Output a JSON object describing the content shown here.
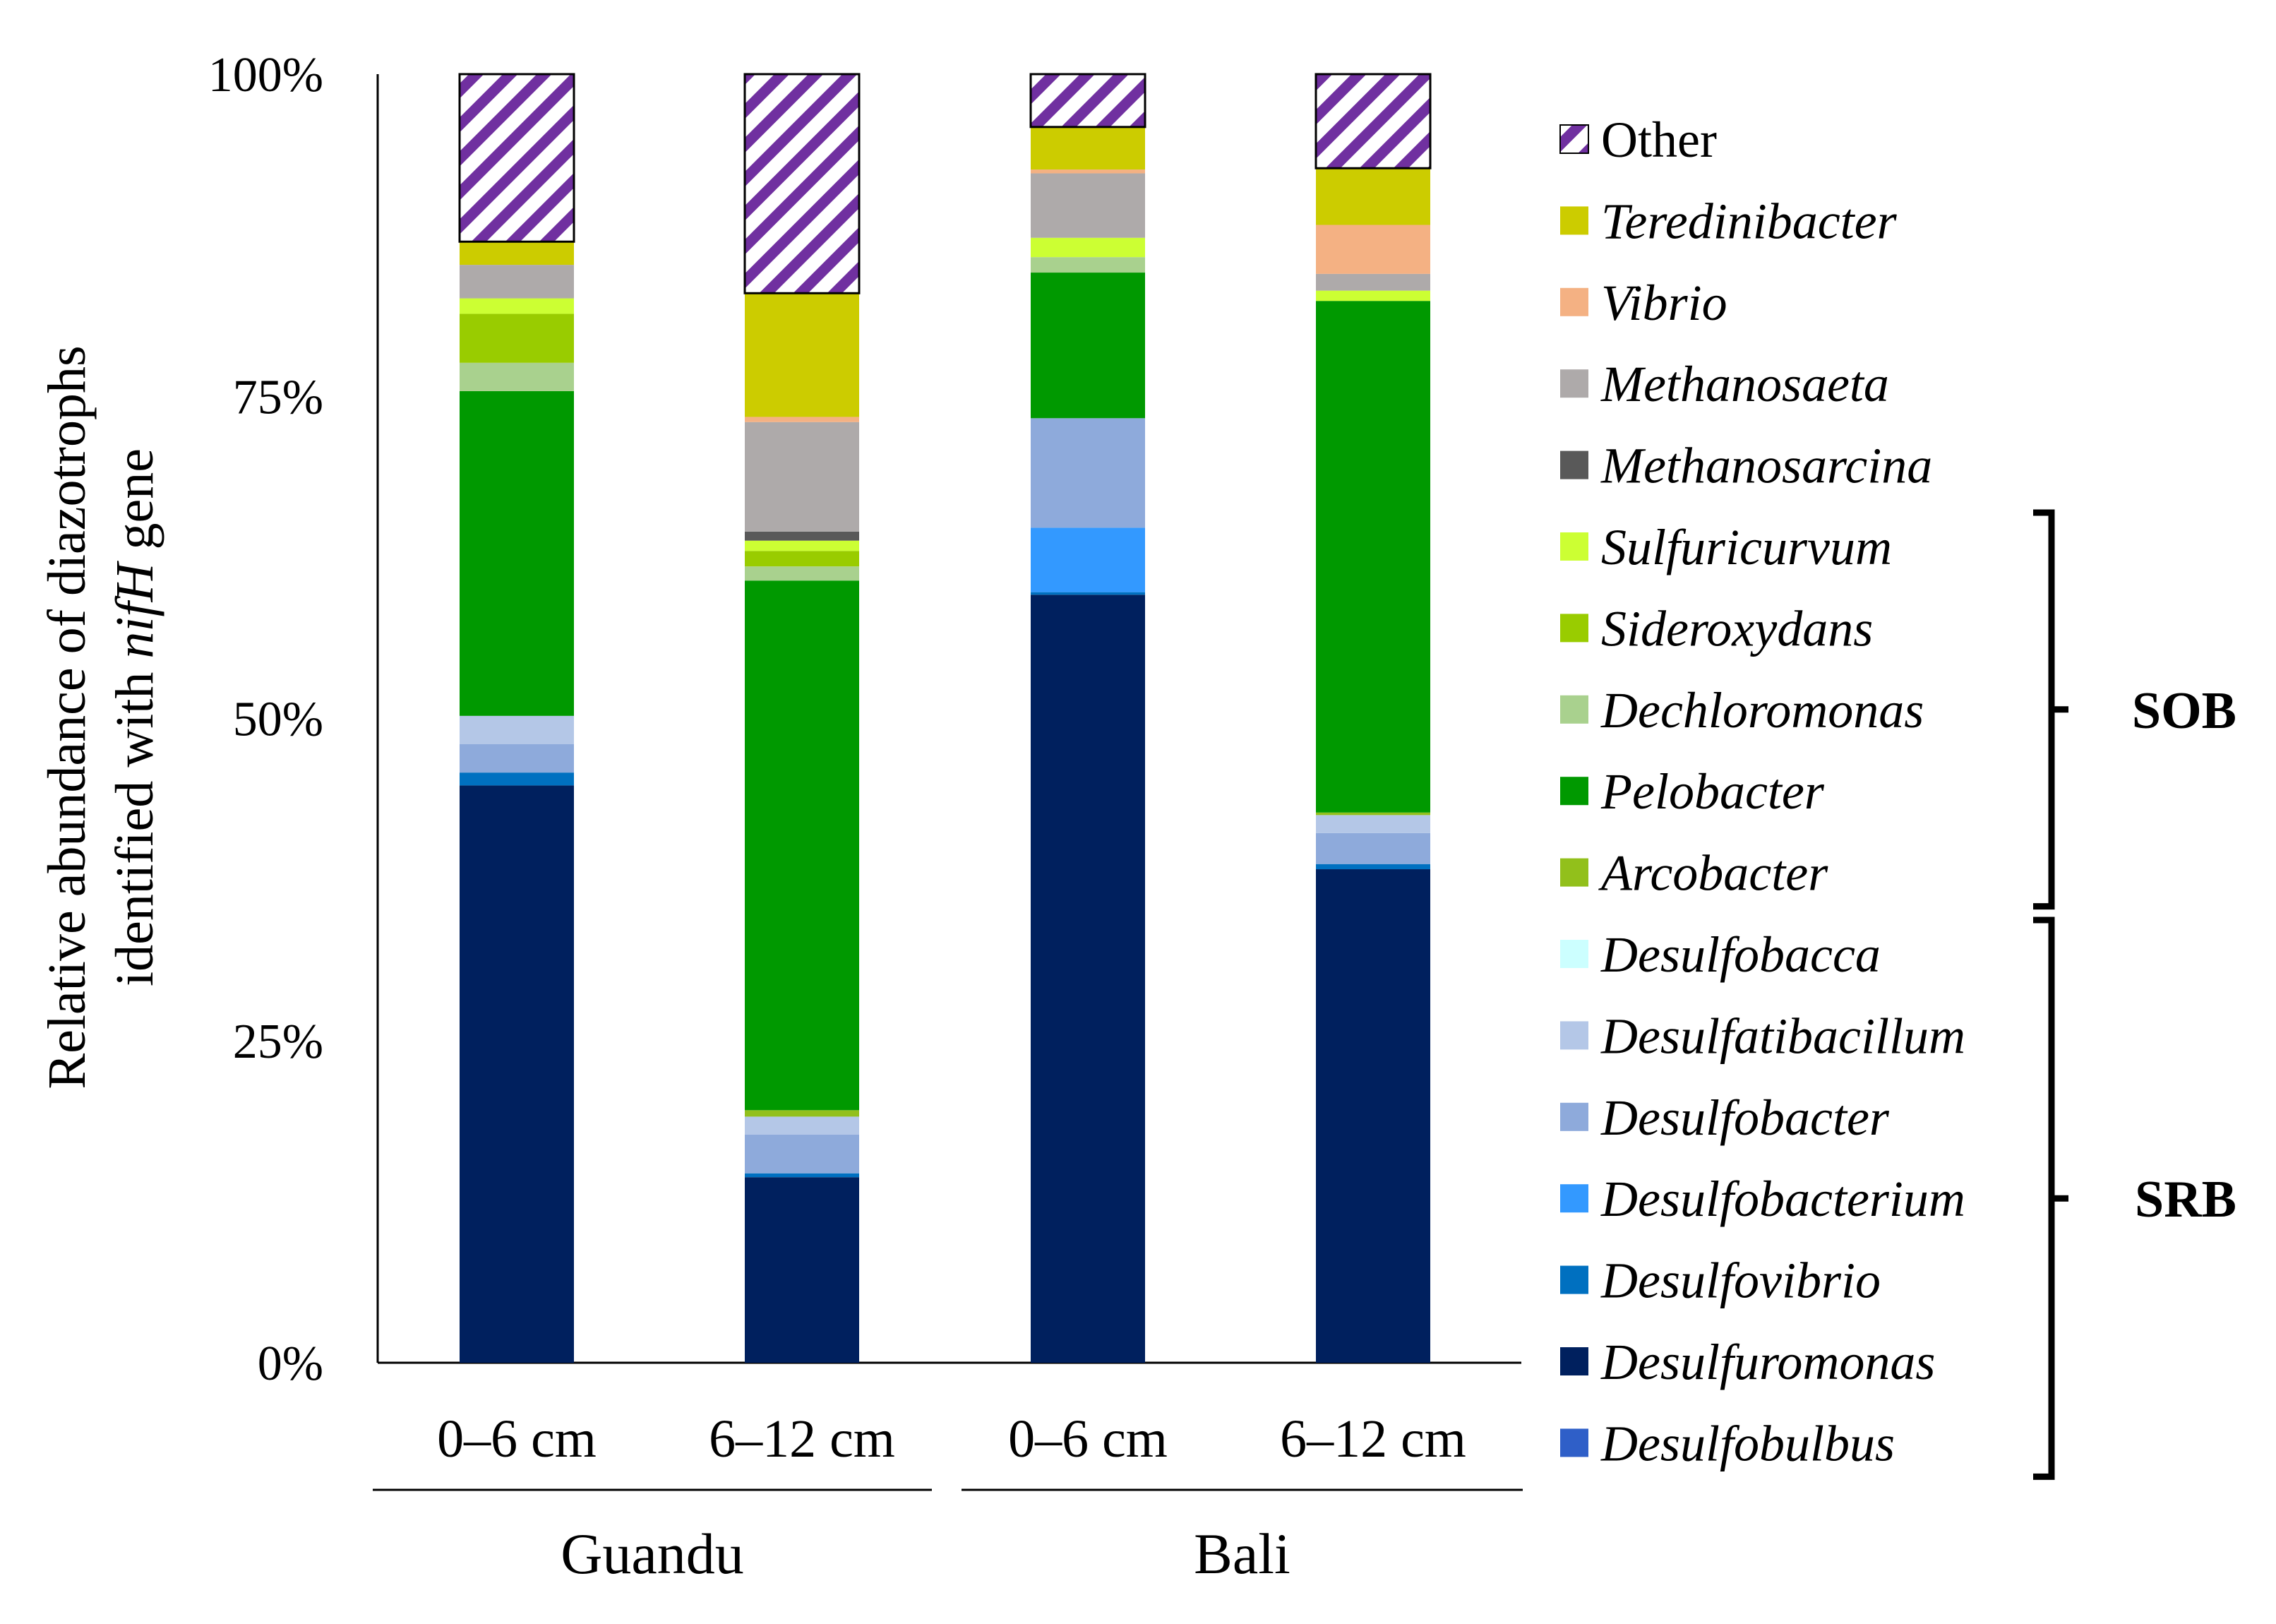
{
  "chart_data": {
    "type": "bar",
    "stacked": true,
    "ylabel_line1": "Relative abundance of diazotrophs",
    "ylabel_line2_prefix": "identified with ",
    "ylabel_line2_italic": "nifH",
    "ylabel_line2_suffix": " gene",
    "ylim": [
      0,
      100
    ],
    "yticks": [
      {
        "value": 0,
        "label": "0%"
      },
      {
        "value": 25,
        "label": "25%"
      },
      {
        "value": 50,
        "label": "50%"
      },
      {
        "value": 75,
        "label": "75%"
      },
      {
        "value": 100,
        "label": "100%"
      }
    ],
    "categories": [
      "0–6 cm",
      "6–12 cm",
      "0–6 cm",
      "6–12 cm"
    ],
    "groups": [
      {
        "label": "Guandu",
        "categories": [
          0,
          1
        ]
      },
      {
        "label": "Bali",
        "categories": [
          2,
          3
        ]
      }
    ],
    "series": [
      {
        "name": "Desulfobulbus",
        "italic": true,
        "color": "#2F5FC8",
        "values": [
          0,
          0,
          0,
          0
        ]
      },
      {
        "name": "Desulfuromonas",
        "italic": true,
        "color": "#00205E",
        "values": [
          44.8,
          14.4,
          59.6,
          38.3
        ]
      },
      {
        "name": "Desulfovibrio",
        "italic": true,
        "color": "#0070C0",
        "values": [
          1.0,
          0.3,
          0.2,
          0.4
        ]
      },
      {
        "name": "Desulfobacterium",
        "italic": true,
        "color": "#3399FF",
        "values": [
          0,
          0,
          5.0,
          0
        ]
      },
      {
        "name": "Desulfobacter",
        "italic": true,
        "color": "#8EAADB",
        "values": [
          2.2,
          3.0,
          8.5,
          2.4
        ]
      },
      {
        "name": "Desulfatibacillum",
        "italic": true,
        "color": "#B4C7E7",
        "values": [
          2.2,
          1.4,
          0,
          1.4
        ]
      },
      {
        "name": "Desulfobacca",
        "italic": true,
        "color": "#CCFFFF",
        "values": [
          0,
          0,
          0,
          0
        ]
      },
      {
        "name": "Arcobacter",
        "italic": true,
        "color": "#92C01B",
        "values": [
          0,
          0.5,
          0,
          0.2
        ]
      },
      {
        "name": "Pelobacter",
        "italic": true,
        "color": "#009900",
        "values": [
          25.2,
          41.1,
          11.3,
          39.7
        ]
      },
      {
        "name": "Dechloromonas",
        "italic": true,
        "color": "#A9D18E",
        "values": [
          2.2,
          1.1,
          1.2,
          0
        ]
      },
      {
        "name": "Sideroxydans",
        "italic": true,
        "color": "#99CC00",
        "values": [
          3.8,
          1.2,
          0,
          0
        ]
      },
      {
        "name": "Sulfuricurvum",
        "italic": true,
        "color": "#CCFF33",
        "values": [
          1.2,
          0.8,
          1.5,
          0.8
        ]
      },
      {
        "name": "Methanosarcina",
        "italic": true,
        "color": "#595959",
        "values": [
          0,
          0.7,
          0,
          0
        ]
      },
      {
        "name": "Methanosaeta",
        "italic": true,
        "color": "#AEAAAA",
        "values": [
          2.6,
          8.5,
          5.0,
          1.3
        ]
      },
      {
        "name": "Vibrio",
        "italic": true,
        "color": "#F4B183",
        "values": [
          0,
          0.4,
          0.3,
          3.8
        ]
      },
      {
        "name": "Teredinibacter",
        "italic": true,
        "color": "#CCCC00",
        "values": [
          1.8,
          9.6,
          3.3,
          4.4
        ]
      },
      {
        "name": "Other",
        "italic": false,
        "color": "#7030A0",
        "pattern": "hatch",
        "values": [
          13.0,
          17.0,
          4.1,
          7.3
        ]
      }
    ],
    "legend_order": [
      "Other",
      "Teredinibacter",
      "Vibrio",
      "Methanosaeta",
      "Methanosarcina",
      "Sulfuricurvum",
      "Sideroxydans",
      "Dechloromonas",
      "Pelobacter",
      "Arcobacter",
      "Desulfobacca",
      "Desulfatibacillum",
      "Desulfobacter",
      "Desulfobacterium",
      "Desulfovibrio",
      "Desulfuromonas",
      "Desulfobulbus"
    ],
    "brackets": [
      {
        "label": "SOB",
        "from": "Sulfuricurvum",
        "to": "Arcobacter"
      },
      {
        "label": "SRB",
        "from": "Desulfobacca",
        "to": "Desulfobulbus"
      }
    ]
  }
}
